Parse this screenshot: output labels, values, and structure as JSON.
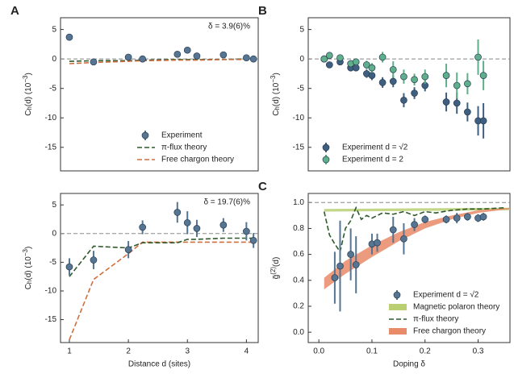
{
  "chart_data": [
    {
      "type": "scatter",
      "panel": "A",
      "annotation": "δ = 3.9(6)%",
      "xlim": [
        0.85,
        4.2
      ],
      "ylim": [
        -19,
        7
      ],
      "yticks": [
        5,
        0,
        -5,
        -10,
        -15
      ],
      "ylabel": [
        {
          "text": "C"
        },
        {
          "text": "h",
          "sub": true
        },
        {
          "text": "(d) (10"
        },
        {
          "text": "−3",
          "sup": true
        },
        {
          "text": ")"
        }
      ],
      "hline": 0,
      "legend": "lower right",
      "series": [
        {
          "name": "Experiment",
          "kind": "points",
          "color": "#557592",
          "x": [
            1,
            1.41,
            2,
            2.24,
            2.83,
            3,
            3.16,
            3.61,
            4,
            4.12
          ],
          "values": [
            3.7,
            -0.5,
            0.3,
            0.0,
            0.8,
            1.5,
            0.5,
            0.7,
            0.2,
            0.0
          ],
          "errors": [
            0.5,
            0.5,
            0.5,
            0.5,
            0.5,
            0.5,
            0.5,
            0.5,
            0.5,
            0.5
          ]
        },
        {
          "name": "π-flux theory",
          "kind": "line",
          "color": "#2f5a2c",
          "x": [
            1,
            1.41,
            2,
            2.24,
            2.83,
            3,
            3.16,
            3.61,
            4,
            4.12
          ],
          "values": [
            -0.4,
            -0.3,
            -0.3,
            -0.2,
            -0.1,
            -0.1,
            -0.1,
            -0.1,
            0,
            0
          ]
        },
        {
          "name": "Free chargon theory",
          "kind": "line",
          "color": "#cf6e3e",
          "x": [
            1,
            1.41,
            2,
            2.24,
            2.83,
            3,
            3.16,
            3.61,
            4,
            4.12
          ],
          "values": [
            -0.8,
            -0.6,
            -0.4,
            -0.3,
            -0.2,
            -0.2,
            -0.2,
            -0.1,
            -0.1,
            -0.1
          ]
        }
      ]
    },
    {
      "type": "scatter",
      "annotation": "δ = 19.7(6)%",
      "xlim": [
        0.85,
        4.2
      ],
      "xticks": [
        1,
        2,
        3,
        4
      ],
      "xlabel": "Distance d (sites)",
      "ylim": [
        -19,
        7
      ],
      "yticks": [
        5,
        0,
        -5,
        -10,
        -15
      ],
      "ylabel": [
        {
          "text": "C"
        },
        {
          "text": "h",
          "sub": true
        },
        {
          "text": "(d) (10"
        },
        {
          "text": "−3",
          "sup": true
        },
        {
          "text": ")"
        }
      ],
      "hline": 0,
      "series": [
        {
          "kind": "line",
          "color": "#cf6e3e",
          "x": [
            1,
            1.41,
            2,
            2.24,
            2.83,
            3,
            3.16,
            3.61,
            4,
            4.12
          ],
          "values": [
            -18.5,
            -8,
            -3.5,
            -1.5,
            -1.5,
            -1.5,
            -1.5,
            -1.5,
            -1.5,
            -1.5
          ]
        },
        {
          "kind": "line",
          "color": "#2f5a2c",
          "x": [
            1,
            1.41,
            2,
            2.24,
            2.83,
            3,
            3.16,
            3.61,
            4,
            4.12
          ],
          "values": [
            -7.5,
            -2.2,
            -2.5,
            -1.6,
            -1.6,
            -1.0,
            -1.0,
            -0.8,
            -0.8,
            -0.8
          ]
        },
        {
          "kind": "points",
          "color": "#557592",
          "x": [
            1,
            1.41,
            2,
            2.24,
            2.83,
            3,
            3.16,
            3.61,
            4,
            4.12
          ],
          "values": [
            -5.8,
            -4.6,
            -2.8,
            1.1,
            3.7,
            1.9,
            0.9,
            1.5,
            0.4,
            -1.2
          ],
          "errors": [
            1.5,
            1.6,
            1.5,
            1.2,
            1.8,
            2.0,
            1.5,
            1.2,
            1.6,
            1.3
          ]
        }
      ]
    },
    {
      "type": "scatter",
      "panel": "B",
      "xlim": [
        -0.02,
        0.36
      ],
      "ylim": [
        -19,
        7
      ],
      "yticks": [
        5,
        0,
        -5,
        -10,
        -15
      ],
      "ylabel": [
        {
          "text": "C"
        },
        {
          "text": "h",
          "sub": true
        },
        {
          "text": "(d) (10"
        },
        {
          "text": "−3",
          "sup": true
        },
        {
          "text": ")"
        }
      ],
      "hline": 0,
      "legend": "lower left",
      "series": [
        {
          "name": "Experiment d = √2",
          "kind": "points",
          "color": "#3f5f80",
          "x": [
            0.01,
            0.02,
            0.04,
            0.06,
            0.07,
            0.09,
            0.1,
            0.12,
            0.14,
            0.16,
            0.18,
            0.2,
            0.24,
            0.26,
            0.28,
            0.3,
            0.31
          ],
          "values": [
            0,
            -1,
            -0.5,
            -1.5,
            -1.5,
            -2.5,
            -2.8,
            -4,
            -3.8,
            -7,
            -5.8,
            -4.5,
            -7.3,
            -7.5,
            -9,
            -10.5,
            -10.5
          ],
          "errors": [
            0.4,
            0.5,
            0.5,
            0.6,
            0.6,
            0.7,
            0.8,
            0.9,
            1.0,
            1.2,
            1.0,
            1.0,
            1.6,
            1.8,
            1.6,
            2.5,
            3.0
          ]
        },
        {
          "name": "Experiment d = 2",
          "kind": "points",
          "color": "#5fae8c",
          "x": [
            0.01,
            0.02,
            0.04,
            0.06,
            0.07,
            0.09,
            0.1,
            0.12,
            0.14,
            0.16,
            0.18,
            0.2,
            0.24,
            0.26,
            0.28,
            0.3,
            0.31
          ],
          "values": [
            0,
            0.6,
            0.2,
            -0.8,
            -0.5,
            -1,
            -1.5,
            0.3,
            -1.8,
            -3,
            -3.5,
            -3,
            -2.8,
            -4.5,
            -4.2,
            0.3,
            -2.8
          ],
          "errors": [
            0.4,
            0.5,
            0.5,
            0.6,
            0.6,
            0.7,
            0.8,
            0.9,
            1.4,
            1.2,
            1.0,
            1.2,
            2.0,
            2.2,
            1.8,
            3.0,
            2.5
          ]
        }
      ]
    },
    {
      "type": "scatter",
      "panel": "C",
      "xlim": [
        -0.02,
        0.36
      ],
      "xticks": [
        {
          "value": 0,
          "label": "0.0"
        },
        0.1,
        0.2,
        0.3
      ],
      "xlabel": "Doping δ",
      "ylim": [
        -0.08,
        1.07
      ],
      "yticks": [
        {
          "value": 0,
          "label": "0.0"
        },
        0.2,
        0.4,
        0.6,
        0.8,
        {
          "value": 1,
          "label": "1.0"
        }
      ],
      "ylabel": [
        {
          "text": "g̃"
        },
        {
          "text": "(2)",
          "sup": true
        },
        {
          "text": "(d)"
        }
      ],
      "hline": 1,
      "legend": "lower right",
      "series": [
        {
          "name": "Experiment d = √2",
          "kind": "points",
          "color": "#557592",
          "x": [
            0.03,
            0.04,
            0.06,
            0.07,
            0.1,
            0.11,
            0.14,
            0.16,
            0.18,
            0.2,
            0.24,
            0.26,
            0.28,
            0.3,
            0.31
          ],
          "values": [
            0.42,
            0.51,
            0.6,
            0.52,
            0.68,
            0.69,
            0.79,
            0.72,
            0.83,
            0.87,
            0.87,
            0.88,
            0.89,
            0.88,
            0.89
          ],
          "errors": [
            0.2,
            0.35,
            0.2,
            0.22,
            0.08,
            0.07,
            0.1,
            0.12,
            0.05,
            0.03,
            0.03,
            0.04,
            0.03,
            0.03,
            0.03
          ]
        },
        {
          "name": "Magnetic polaron theory",
          "kind": "band",
          "color": "#b9cf72",
          "x": [
            0.01,
            0.36
          ],
          "low": [
            0.93,
            0.94
          ],
          "high": [
            0.95,
            0.96
          ]
        },
        {
          "name": "π-flux theory",
          "kind": "line",
          "color": "#2f5a2c",
          "x": [
            0.01,
            0.02,
            0.03,
            0.04,
            0.05,
            0.06,
            0.07,
            0.08,
            0.09,
            0.1,
            0.12,
            0.14,
            0.16,
            0.18,
            0.2,
            0.22,
            0.25,
            0.28,
            0.31,
            0.35
          ],
          "values": [
            0.93,
            0.75,
            0.68,
            0.62,
            0.8,
            0.86,
            0.96,
            0.87,
            0.9,
            0.88,
            0.92,
            0.91,
            0.93,
            0.9,
            0.93,
            0.92,
            0.94,
            0.95,
            0.95,
            0.96
          ]
        },
        {
          "name": "Free chargon theory",
          "kind": "band",
          "color": "#e98a68",
          "x": [
            0.01,
            0.05,
            0.1,
            0.15,
            0.2,
            0.25,
            0.3,
            0.36
          ],
          "low": [
            0.33,
            0.45,
            0.58,
            0.7,
            0.8,
            0.87,
            0.92,
            0.95
          ],
          "high": [
            0.42,
            0.55,
            0.67,
            0.77,
            0.85,
            0.9,
            0.94,
            0.96
          ]
        }
      ]
    }
  ]
}
